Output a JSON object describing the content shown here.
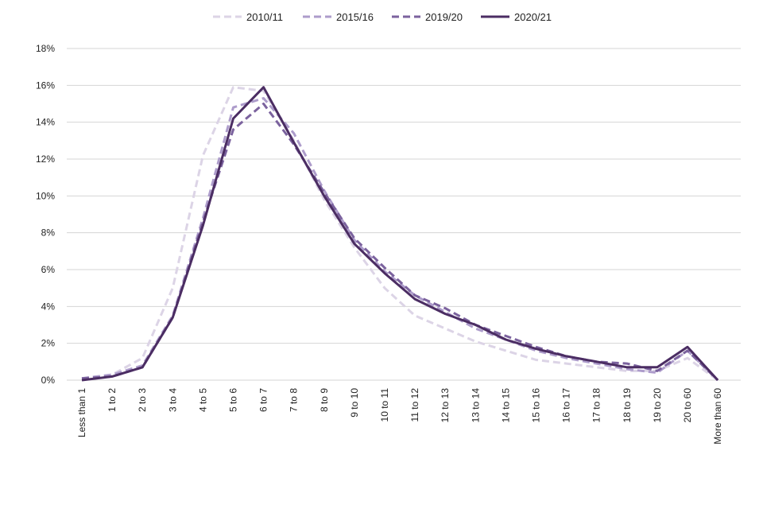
{
  "chart_data": {
    "type": "line",
    "title": "",
    "xlabel": "",
    "ylabel": "",
    "categories": [
      "Less than 1",
      "1 to 2",
      "2 to 3",
      "3 to 4",
      "4 to 5",
      "5 to 6",
      "6 to 7",
      "7 to 8",
      "8 to 9",
      "9 to 10",
      "10 to 11",
      "11 to 12",
      "12 to 13",
      "13 to 14",
      "14 to 15",
      "15 to 16",
      "16 to 17",
      "17 to 18",
      "18 to 19",
      "19 to 20",
      "20 to 60",
      "More than 60"
    ],
    "ylim": [
      0,
      18
    ],
    "yticks": [
      0,
      2,
      4,
      6,
      8,
      10,
      12,
      14,
      16,
      18
    ],
    "ytick_labels": [
      "0%",
      "2%",
      "4%",
      "6%",
      "8%",
      "10%",
      "12%",
      "14%",
      "16%",
      "18%"
    ],
    "grid": true,
    "legend_position": "top",
    "series": [
      {
        "name": "2010/11",
        "style": "dashed",
        "color": "#dcd4e6",
        "values": [
          0.1,
          0.3,
          1.2,
          5.0,
          12.2,
          15.9,
          15.7,
          13.0,
          9.8,
          7.2,
          5.0,
          3.5,
          2.8,
          2.1,
          1.6,
          1.1,
          0.9,
          0.7,
          0.5,
          0.5,
          1.2,
          0.0
        ]
      },
      {
        "name": "2015/16",
        "style": "dashed",
        "color": "#ad9ccb",
        "values": [
          0.1,
          0.3,
          0.8,
          3.5,
          8.8,
          14.8,
          15.3,
          13.4,
          10.3,
          7.6,
          5.9,
          4.6,
          3.7,
          2.8,
          2.2,
          1.6,
          1.2,
          0.9,
          0.6,
          0.4,
          1.6,
          0.0
        ]
      },
      {
        "name": "2019/20",
        "style": "dashed",
        "color": "#7b629e",
        "values": [
          0.1,
          0.2,
          0.7,
          3.4,
          8.6,
          13.6,
          15.0,
          12.8,
          10.2,
          7.7,
          6.1,
          4.6,
          3.9,
          3.0,
          2.4,
          1.8,
          1.3,
          1.0,
          0.9,
          0.5,
          1.6,
          0.0
        ]
      },
      {
        "name": "2020/21",
        "style": "solid",
        "color": "#4b2d63",
        "values": [
          0.0,
          0.2,
          0.7,
          3.4,
          8.4,
          14.2,
          15.9,
          12.9,
          10.0,
          7.4,
          5.8,
          4.4,
          3.6,
          3.0,
          2.2,
          1.7,
          1.3,
          1.0,
          0.7,
          0.7,
          1.8,
          0.0
        ]
      }
    ]
  }
}
